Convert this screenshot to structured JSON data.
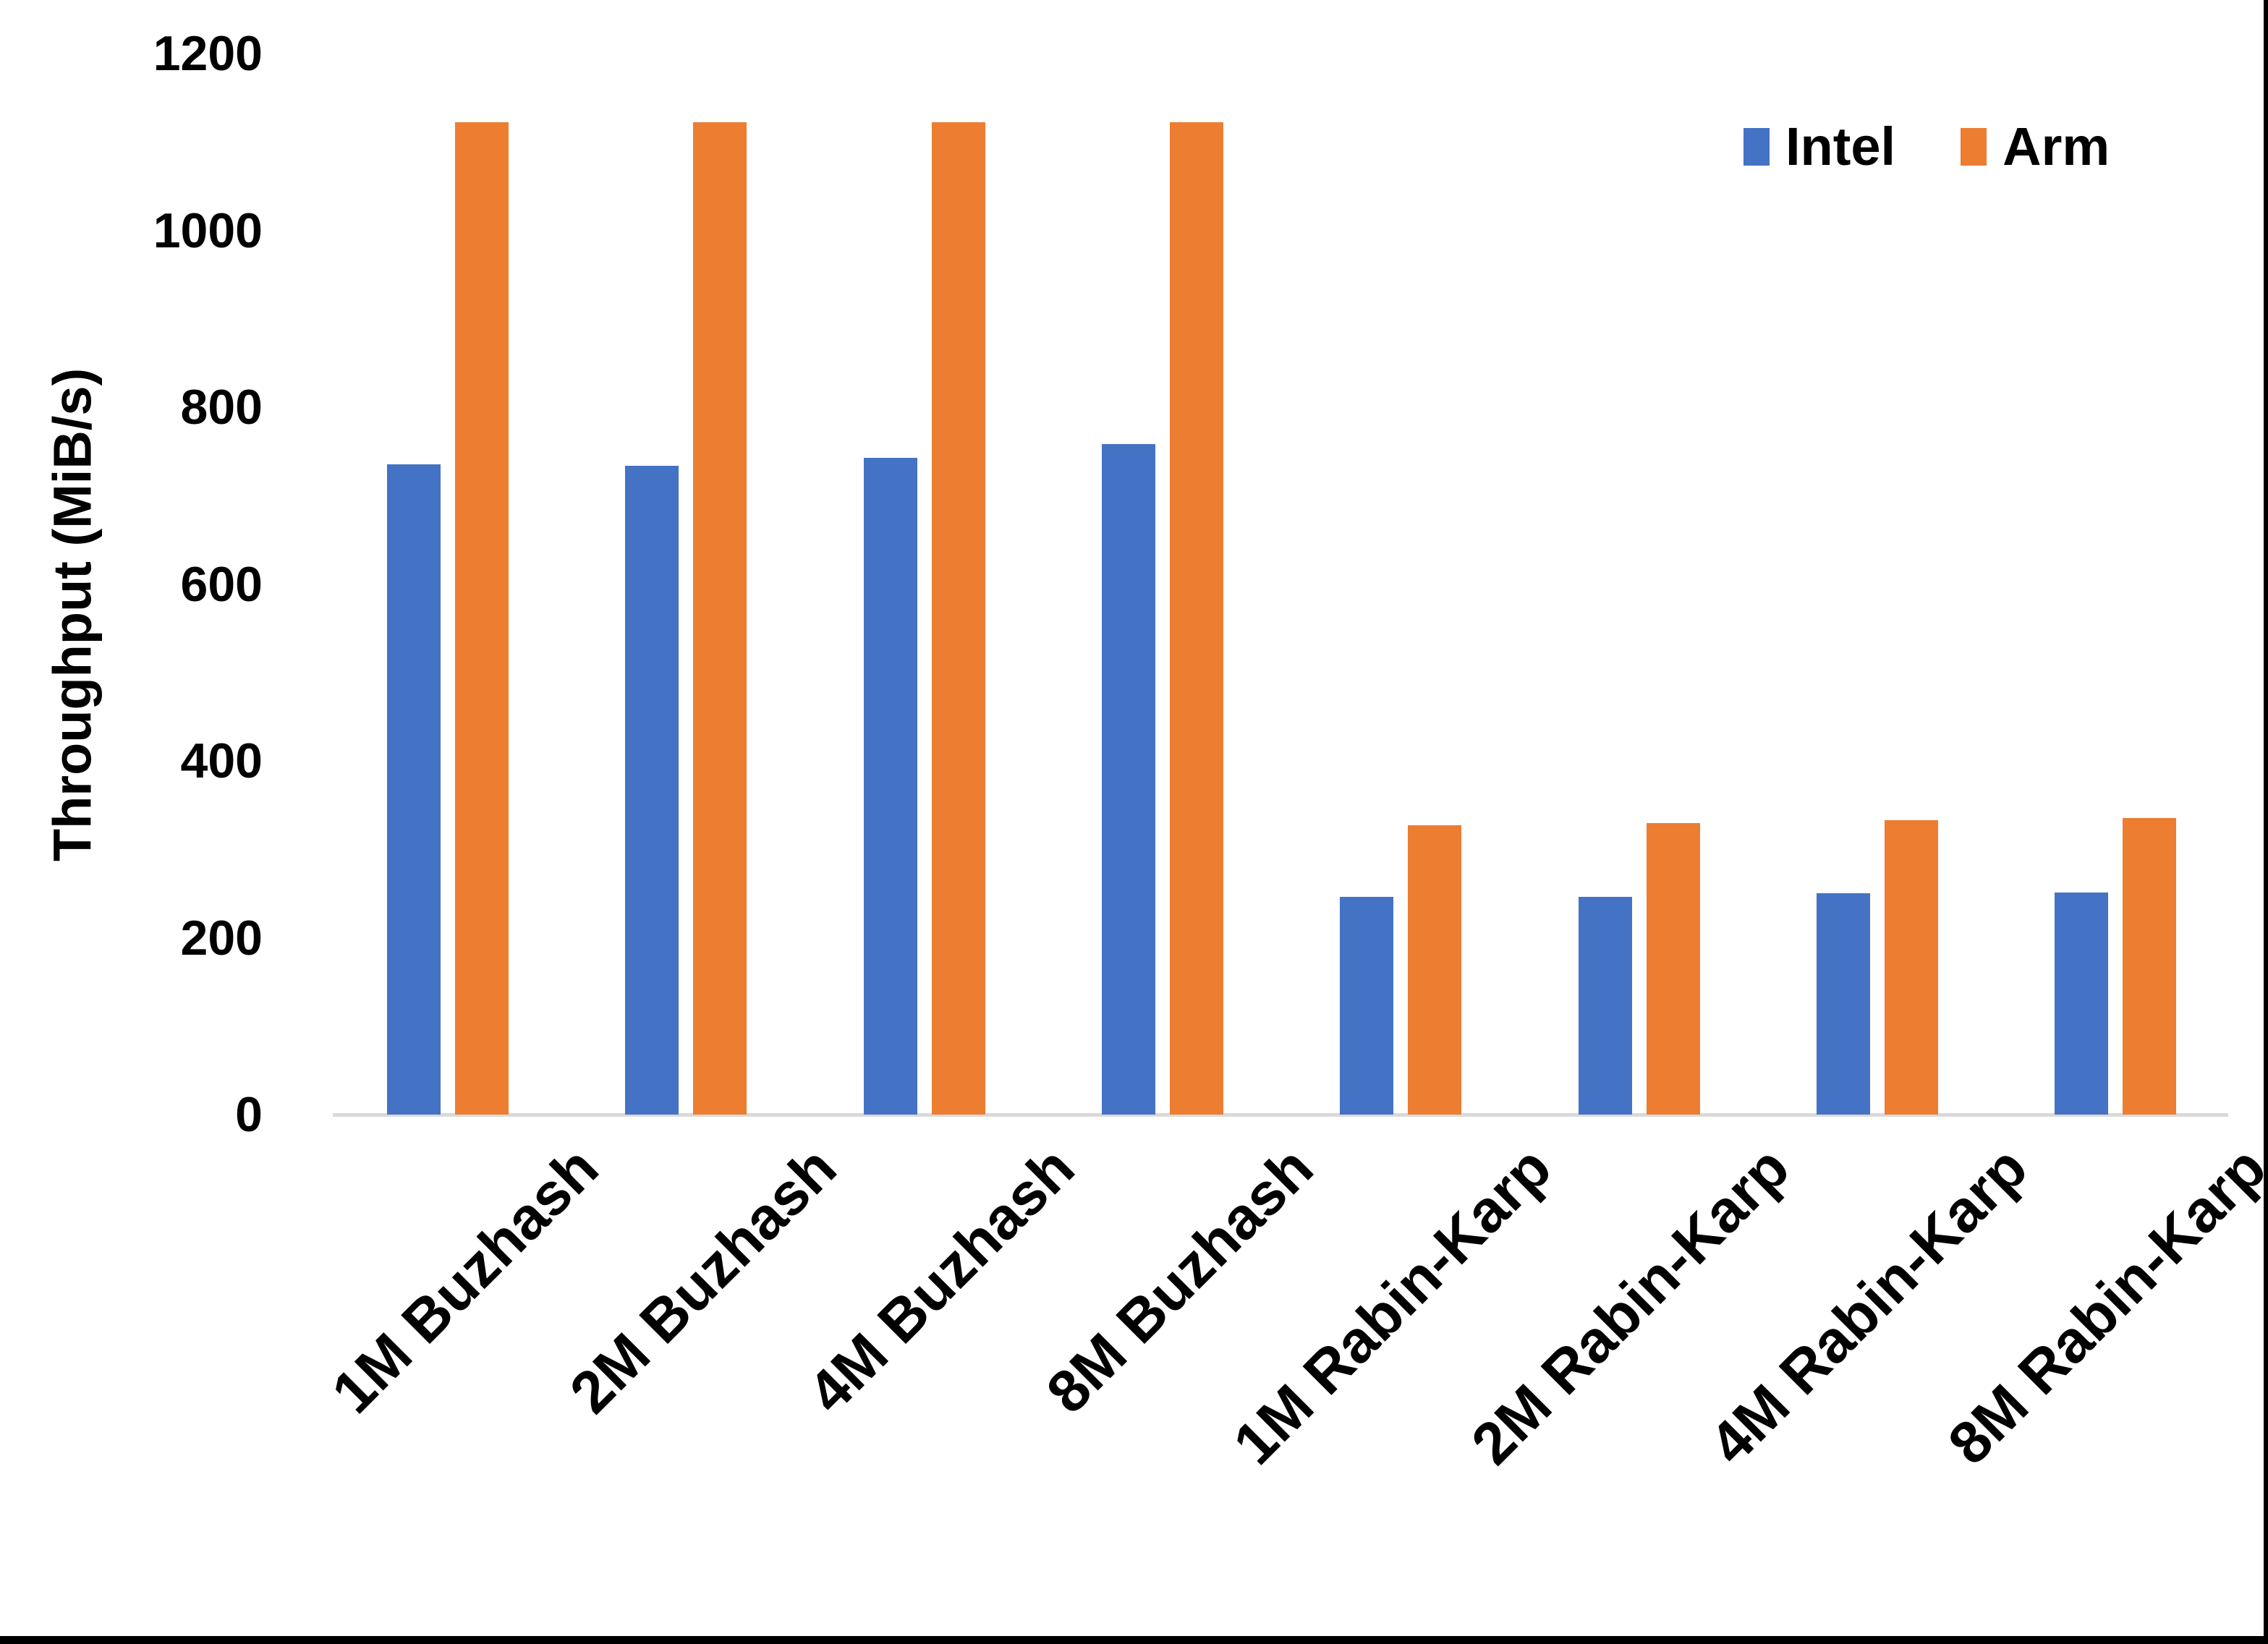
{
  "chart_data": {
    "type": "bar",
    "title": "",
    "ylabel": "Throughput (MiB/s)",
    "xlabel": "",
    "ylim": [
      0,
      1200
    ],
    "yticks": [
      0,
      200,
      400,
      600,
      800,
      1000,
      1200
    ],
    "grid": false,
    "legend_position": "top-right",
    "axis_line_color": "#d9d9d9",
    "categories": [
      "1M Buzhash",
      "2M Buzhash",
      "4M Buzhash",
      "8M Buzhash",
      "1M Rabin-Karp",
      "2M Rabin-Karp",
      "4M Rabin-Karp",
      "8M Rabin-Karp"
    ],
    "series": [
      {
        "name": "Intel",
        "color": "#4472c4",
        "values": [
          735,
          734,
          743,
          758,
          246,
          246,
          250,
          251
        ]
      },
      {
        "name": "Arm",
        "color": "#ed7d31",
        "values": [
          1122,
          1122,
          1122,
          1122,
          327,
          330,
          333,
          335
        ]
      }
    ]
  }
}
